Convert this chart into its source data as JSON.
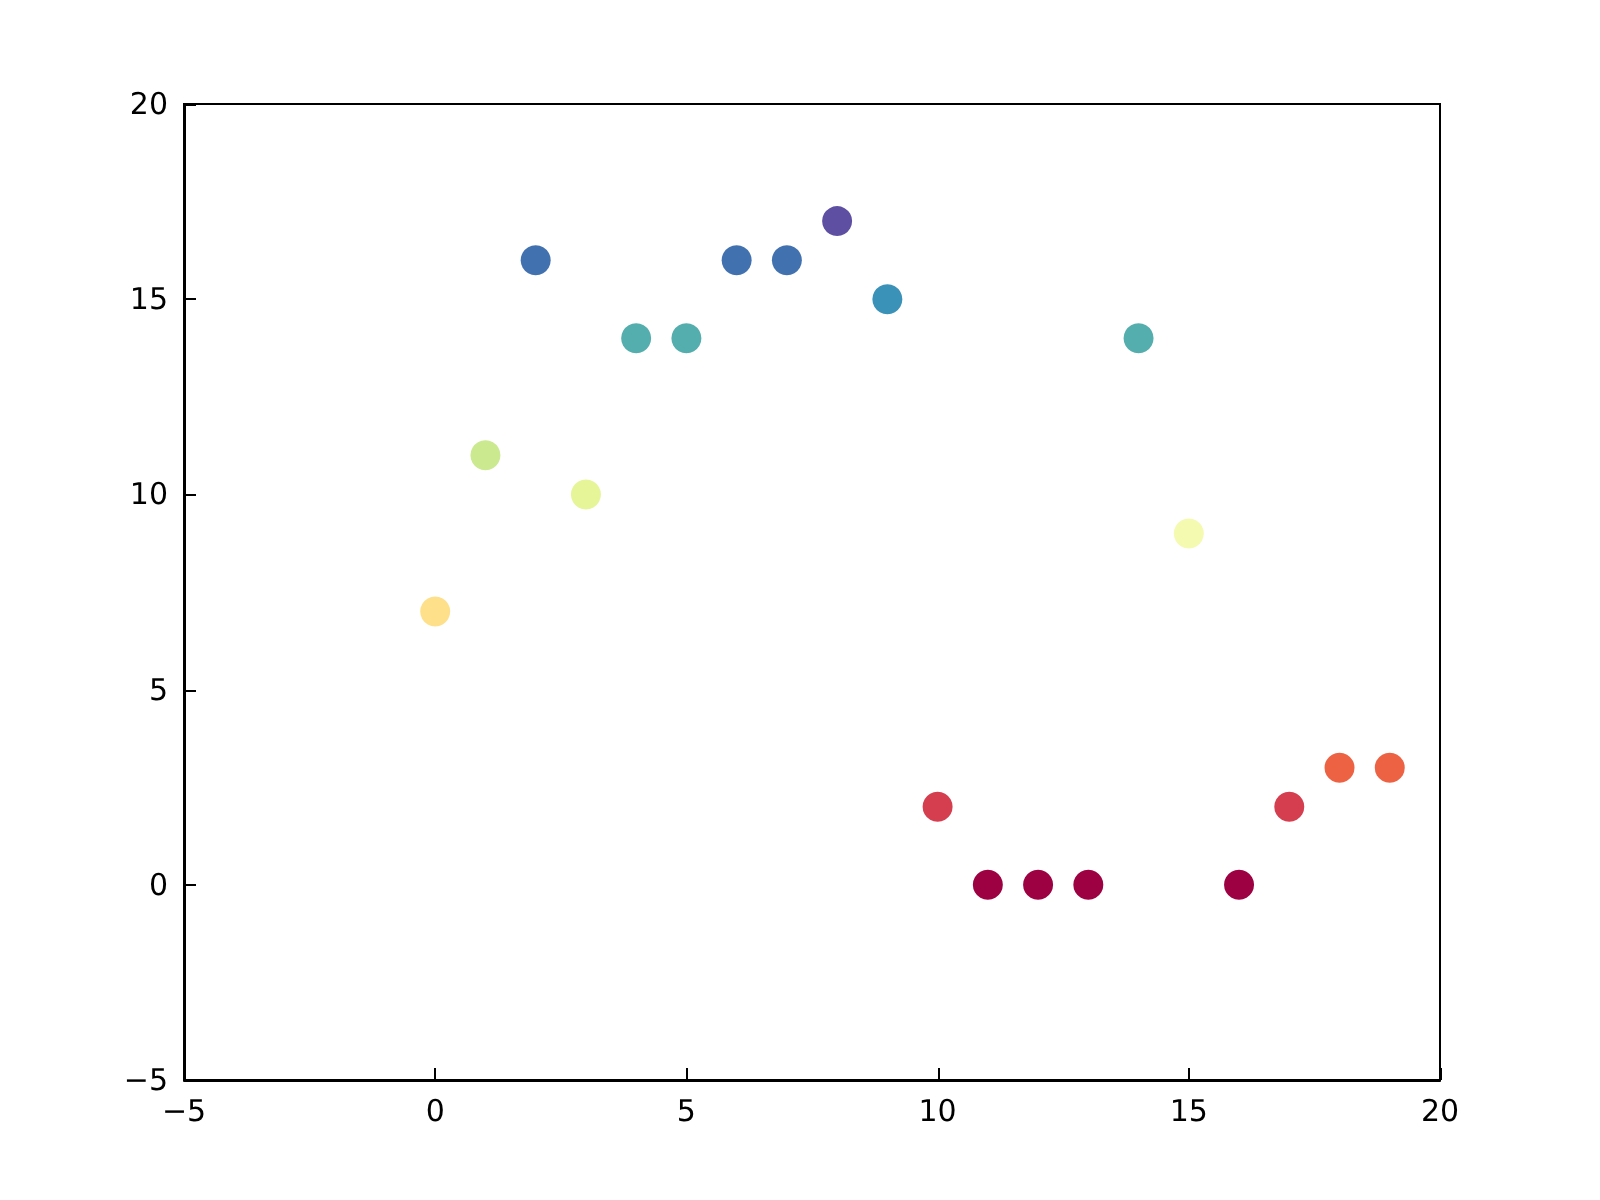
{
  "chart_data": {
    "type": "scatter",
    "x": [
      0,
      1,
      2,
      3,
      4,
      5,
      6,
      7,
      8,
      9,
      10,
      11,
      12,
      13,
      14,
      15,
      16,
      17,
      18,
      19
    ],
    "values": [
      7,
      11,
      16,
      10,
      14,
      14,
      16,
      16,
      17,
      15,
      2,
      0,
      0,
      0,
      14,
      9,
      0,
      2,
      3,
      3
    ],
    "colors": [
      "#fee08b",
      "#cbe98f",
      "#4271b0",
      "#e6f598",
      "#54aead",
      "#54aead",
      "#4271b0",
      "#4271b0",
      "#5e4fa2",
      "#3a92b8",
      "#d53e4f",
      "#9e0142",
      "#9e0142",
      "#9e0142",
      "#54aead",
      "#f4fab0",
      "#9e0142",
      "#d53e4f",
      "#ee6244",
      "#ee6244"
    ],
    "xlim": [
      -5,
      20
    ],
    "xticks": [
      -5,
      0,
      5,
      10,
      15,
      20
    ],
    "ylim": [
      -5,
      20
    ],
    "yticks": [
      -5,
      0,
      5,
      10,
      15,
      20
    ],
    "grid": false,
    "marker": "circle"
  }
}
